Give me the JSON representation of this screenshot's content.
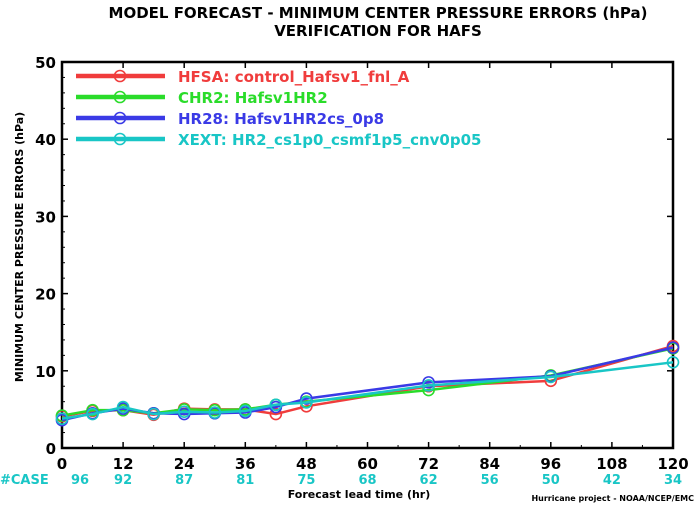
{
  "chart_data": {
    "type": "line",
    "title": "MODEL FORECAST - MINIMUM CENTER PRESSURE ERRORS (hPa)",
    "subtitle": "VERIFICATION FOR HAFS",
    "xlabel": "Forecast lead time (hr)",
    "ylabel": "MINIMUM CENTER PRESSURE ERRORS (hPa)",
    "xlim": [
      0,
      120
    ],
    "ylim": [
      0,
      50
    ],
    "x_ticks": [
      0,
      12,
      24,
      36,
      48,
      60,
      72,
      84,
      96,
      108,
      120
    ],
    "y_ticks": [
      0,
      10,
      20,
      30,
      40,
      50
    ],
    "x": [
      0,
      6,
      12,
      18,
      24,
      30,
      36,
      42,
      48,
      72,
      96,
      120
    ],
    "case_label": "#CASE",
    "case_counts": [
      "96",
      "92",
      "87",
      "81",
      "75",
      "68",
      "62",
      "56",
      "50",
      "42",
      "34"
    ],
    "credit": "Hurricane project - NOAA/NCEP/EMC",
    "legend_position": "top-left",
    "series": [
      {
        "name": "HFSA:",
        "label": "control_Hafsv1_fnl_A",
        "color": "#f03c3c",
        "values": [
          4.1,
          4.8,
          4.9,
          4.3,
          5.1,
          5.0,
          5.0,
          4.4,
          5.4,
          8.0,
          8.7,
          13.2
        ]
      },
      {
        "name": "CHR2:",
        "label": "Hafsv1HR2",
        "color": "#2adc2a",
        "values": [
          4.2,
          4.9,
          4.9,
          4.5,
          5.0,
          4.9,
          5.0,
          5.6,
          6.0,
          7.5,
          9.4,
          12.9
        ]
      },
      {
        "name": "HR28:",
        "label": "Hafsv1HR2cs_0p8",
        "color": "#3a3ae6",
        "values": [
          3.6,
          4.5,
          5.1,
          4.5,
          4.4,
          4.5,
          4.6,
          5.3,
          6.4,
          8.5,
          9.3,
          13.0
        ]
      },
      {
        "name": "XEXT:",
        "label": "HR2_cs1p0_csmf1p5_cnv0p05",
        "color": "#19c6c6",
        "values": [
          3.8,
          4.4,
          5.3,
          4.4,
          4.7,
          4.6,
          4.8,
          5.6,
          5.9,
          8.1,
          9.2,
          11.1
        ]
      }
    ]
  }
}
